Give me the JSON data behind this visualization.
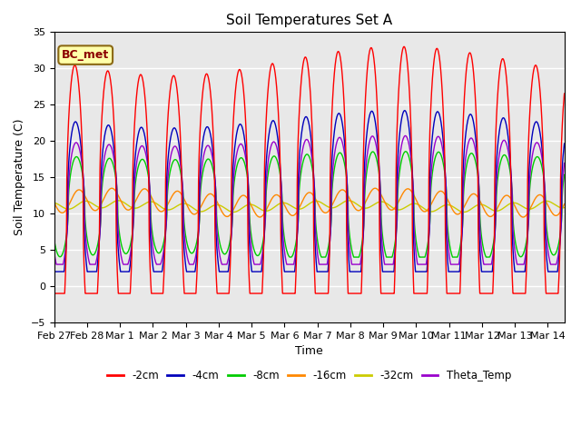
{
  "title": "Soil Temperatures Set A",
  "xlabel": "Time",
  "ylabel": "Soil Temperature (C)",
  "ylim": [
    -5,
    35
  ],
  "annotation_text": "BC_met",
  "background_color": "#e8e8e8",
  "series_colors": {
    "-2cm": "#ff0000",
    "-4cm": "#0000bb",
    "-8cm": "#00cc00",
    "-16cm": "#ff8800",
    "-32cm": "#cccc00",
    "Theta_Temp": "#9900cc"
  },
  "legend_labels": [
    "-2cm",
    "-4cm",
    "-8cm",
    "-16cm",
    "-32cm",
    "Theta_Temp"
  ],
  "num_days": 15.5,
  "points_per_day": 480,
  "x_tick_labels": [
    "Feb 27",
    "Feb 28",
    "Mar 1",
    "Mar 2",
    "Mar 3",
    "Mar 4",
    "Mar 5",
    "Mar 6",
    "Mar 7",
    "Mar 8",
    "Mar 9",
    "Mar 10",
    "Mar 11",
    "Mar 12",
    "Mar 13",
    "Mar 14"
  ],
  "x_tick_positions": [
    0,
    1,
    2,
    3,
    4,
    5,
    6,
    7,
    8,
    9,
    10,
    11,
    12,
    13,
    14,
    15
  ]
}
